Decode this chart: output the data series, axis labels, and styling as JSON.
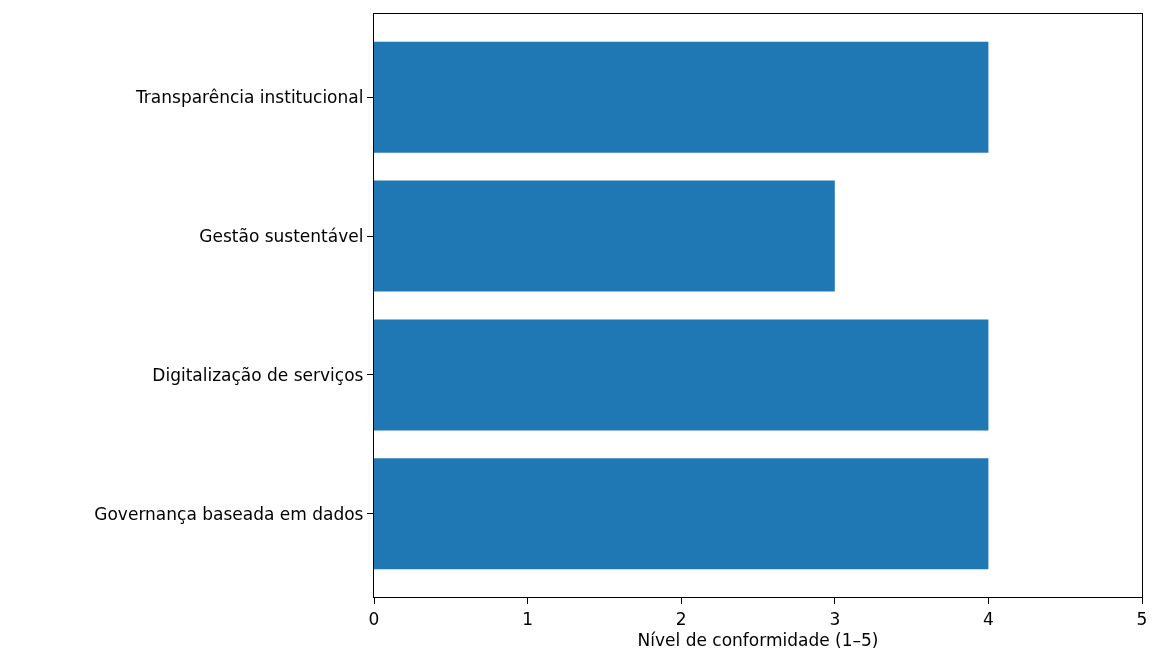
{
  "chart_data": {
    "type": "bar",
    "orientation": "horizontal",
    "xlabel": "Nível de conformidade (1–5)",
    "categories": [
      "Transparência institucional",
      "Gestão sustentável",
      "Digitalização de serviços",
      "Governança baseada em dados"
    ],
    "values": [
      4,
      3,
      4,
      4
    ],
    "color": "#1f77b4",
    "xlim": [
      0,
      5
    ],
    "xticks": [
      0,
      1,
      2,
      3,
      4,
      5
    ]
  }
}
